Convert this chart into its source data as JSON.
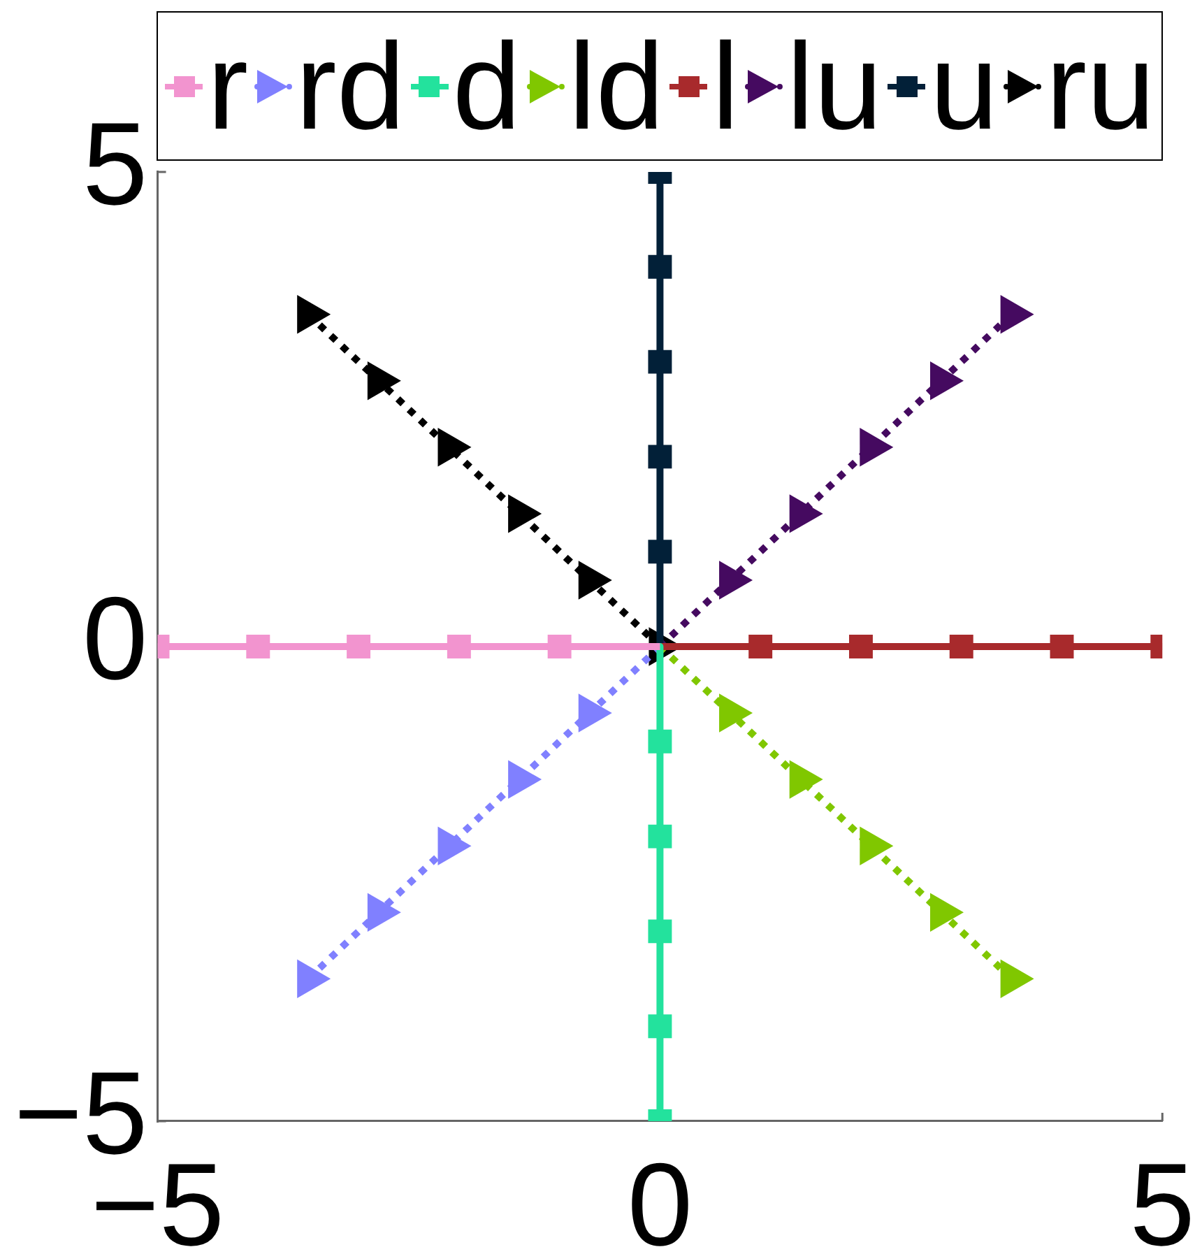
{
  "chart_data": {
    "type": "line",
    "series": [
      {
        "name": "r",
        "color": "#f294cf",
        "marker": "square",
        "line_style": "solid",
        "x": [
          0,
          -1,
          -2,
          -3,
          -4,
          -5
        ],
        "values": [
          0,
          0,
          0,
          0,
          0,
          0
        ]
      },
      {
        "name": "rd",
        "color": "#8080ff",
        "marker": "triangle",
        "line_style": "dotted",
        "x": [
          0,
          -0.7,
          -1.4,
          -2.1,
          -2.8,
          -3.5
        ],
        "values": [
          0,
          -0.7,
          -1.4,
          -2.1,
          -2.8,
          -3.5
        ]
      },
      {
        "name": "d",
        "color": "#23e29d",
        "marker": "square",
        "line_style": "solid",
        "x": [
          0,
          0,
          0,
          0,
          0,
          0
        ],
        "values": [
          0,
          -1,
          -2,
          -3,
          -4,
          -5
        ]
      },
      {
        "name": "ld",
        "color": "#80c700",
        "marker": "triangle",
        "line_style": "dotted",
        "x": [
          0,
          0.7,
          1.4,
          2.1,
          2.8,
          3.5
        ],
        "values": [
          0,
          -0.7,
          -1.4,
          -2.1,
          -2.8,
          -3.5
        ]
      },
      {
        "name": "l",
        "color": "#a82a2c",
        "marker": "square",
        "line_style": "solid",
        "x": [
          0,
          1,
          2,
          3,
          4,
          5
        ],
        "values": [
          0,
          0,
          0,
          0,
          0,
          0
        ]
      },
      {
        "name": "lu",
        "color": "#450a60",
        "marker": "triangle",
        "line_style": "dotted",
        "x": [
          0,
          0.7,
          1.4,
          2.1,
          2.8,
          3.5
        ],
        "values": [
          0,
          0.7,
          1.4,
          2.1,
          2.8,
          3.5
        ]
      },
      {
        "name": "u",
        "color": "#022038",
        "marker": "square",
        "line_style": "solid",
        "x": [
          0,
          0,
          0,
          0,
          0,
          0
        ],
        "values": [
          0,
          1,
          2,
          3,
          4,
          5
        ]
      },
      {
        "name": "ru",
        "color": "#000000",
        "marker": "triangle",
        "line_style": "dotted",
        "x": [
          0,
          -0.7,
          -1.4,
          -2.1,
          -2.8,
          -3.5
        ],
        "values": [
          0,
          0.7,
          1.4,
          2.1,
          2.8,
          3.5
        ]
      }
    ],
    "xlim": [
      -5,
      5
    ],
    "ylim": [
      -5,
      5
    ],
    "xticks": [
      {
        "value": -5,
        "label": "−5"
      },
      0,
      5
    ],
    "yticks": [
      {
        "value": -5,
        "label": "−5"
      },
      0,
      5
    ],
    "legend": "top"
  }
}
